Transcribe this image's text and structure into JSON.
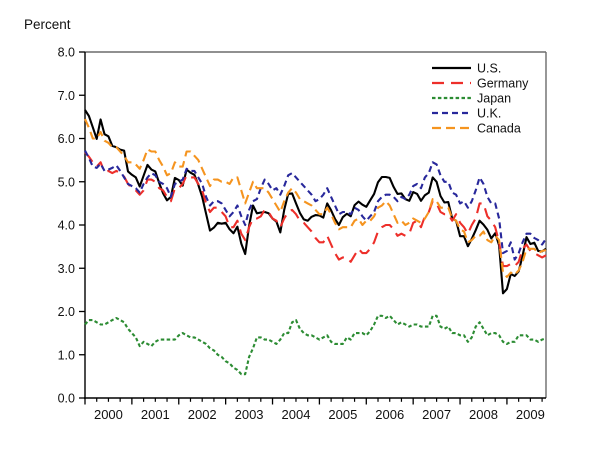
{
  "chart_data": {
    "type": "line",
    "title": "Percent",
    "xlabel": "",
    "ylabel": "Percent",
    "ylim": [
      0.0,
      8.0
    ],
    "ytick_step": 1.0,
    "ytick_labels": [
      "0.0",
      "1.0",
      "2.0",
      "3.0",
      "4.0",
      "5.0",
      "6.0",
      "7.0",
      "8.0"
    ],
    "x_year_labels": [
      "2000",
      "2001",
      "2002",
      "2003",
      "2004",
      "2005",
      "2006",
      "2007",
      "2008",
      "2009"
    ],
    "x_frequency": "monthly",
    "x_start": "2000-01",
    "x_end": "2009-11",
    "x_tick_major": "yearly",
    "x_tick_minor": "quarterly",
    "grid": false,
    "legend_position": "top-right-inside",
    "axis_color": "#000000",
    "frame_color": "#6b6b6b",
    "background_color": "#ffffff",
    "series": [
      {
        "name": "U.S.",
        "color": "#000000",
        "dash": "solid",
        "dasharray": "",
        "values": [
          6.66,
          6.52,
          6.26,
          5.99,
          6.44,
          6.1,
          6.05,
          5.83,
          5.8,
          5.74,
          5.72,
          5.24,
          5.16,
          5.1,
          4.89,
          5.14,
          5.39,
          5.28,
          5.24,
          4.97,
          4.73,
          4.57,
          4.65,
          5.09,
          5.04,
          4.91,
          5.28,
          5.21,
          5.16,
          4.93,
          4.65,
          4.26,
          3.87,
          3.94,
          4.05,
          4.03,
          4.05,
          3.9,
          3.81,
          3.96,
          3.57,
          3.33,
          3.98,
          4.45,
          4.27,
          4.29,
          4.3,
          4.27,
          4.15,
          4.08,
          3.83,
          4.35,
          4.72,
          4.73,
          4.5,
          4.28,
          4.13,
          4.1,
          4.19,
          4.23,
          4.22,
          4.17,
          4.5,
          4.34,
          4.14,
          4.0,
          4.18,
          4.26,
          4.2,
          4.46,
          4.54,
          4.47,
          4.42,
          4.57,
          4.72,
          4.99,
          5.11,
          5.11,
          5.09,
          4.88,
          4.72,
          4.73,
          4.6,
          4.56,
          4.76,
          4.72,
          4.56,
          4.69,
          4.75,
          5.1,
          5.0,
          4.67,
          4.52,
          4.53,
          4.15,
          4.1,
          3.74,
          3.74,
          3.51,
          3.68,
          3.88,
          4.1,
          4.01,
          3.89,
          3.69,
          3.81,
          3.53,
          2.42,
          2.52,
          2.87,
          2.82,
          2.93,
          3.29,
          3.72,
          3.56,
          3.59,
          3.4,
          3.39,
          3.45
        ]
      },
      {
        "name": "Germany",
        "color": "#ed2f2a",
        "dash": "long-dash",
        "dasharray": "12,7",
        "values": [
          5.68,
          5.58,
          5.45,
          5.35,
          5.45,
          5.22,
          5.25,
          5.2,
          5.25,
          5.2,
          5.12,
          4.95,
          4.85,
          4.8,
          4.7,
          4.8,
          5.05,
          5.05,
          5.0,
          4.85,
          4.8,
          4.65,
          4.55,
          4.85,
          4.85,
          4.95,
          5.15,
          5.1,
          5.1,
          4.95,
          4.8,
          4.5,
          4.3,
          4.4,
          4.4,
          4.3,
          4.2,
          3.95,
          3.95,
          4.1,
          3.8,
          3.65,
          3.95,
          4.15,
          4.15,
          4.2,
          4.35,
          4.3,
          4.15,
          4.1,
          3.95,
          4.15,
          4.3,
          4.35,
          4.25,
          4.1,
          4.05,
          3.95,
          3.85,
          3.7,
          3.6,
          3.6,
          3.75,
          3.55,
          3.35,
          3.2,
          3.25,
          3.25,
          3.15,
          3.3,
          3.45,
          3.35,
          3.35,
          3.45,
          3.6,
          3.85,
          3.95,
          4.0,
          4.0,
          3.9,
          3.75,
          3.8,
          3.75,
          3.8,
          4.05,
          4.1,
          3.95,
          4.2,
          4.3,
          4.55,
          4.5,
          4.3,
          4.25,
          4.25,
          4.1,
          4.25,
          4.05,
          3.95,
          3.8,
          4.0,
          4.15,
          4.5,
          4.5,
          4.2,
          4.1,
          3.95,
          3.6,
          3.05,
          3.05,
          3.1,
          3.05,
          3.15,
          3.45,
          3.55,
          3.4,
          3.35,
          3.3,
          3.25,
          3.3
        ]
      },
      {
        "name": "Japan",
        "color": "#2c8c33",
        "dash": "short-dash",
        "dasharray": "3.5,2.4",
        "values": [
          1.7,
          1.8,
          1.8,
          1.75,
          1.7,
          1.7,
          1.75,
          1.8,
          1.85,
          1.8,
          1.75,
          1.6,
          1.5,
          1.4,
          1.2,
          1.3,
          1.25,
          1.2,
          1.3,
          1.35,
          1.35,
          1.35,
          1.35,
          1.35,
          1.45,
          1.5,
          1.45,
          1.4,
          1.4,
          1.35,
          1.3,
          1.25,
          1.15,
          1.1,
          1.0,
          0.95,
          0.85,
          0.8,
          0.7,
          0.65,
          0.55,
          0.55,
          0.95,
          1.15,
          1.4,
          1.4,
          1.35,
          1.35,
          1.3,
          1.25,
          1.35,
          1.5,
          1.5,
          1.75,
          1.8,
          1.6,
          1.5,
          1.45,
          1.45,
          1.4,
          1.35,
          1.4,
          1.45,
          1.3,
          1.25,
          1.25,
          1.25,
          1.4,
          1.35,
          1.5,
          1.5,
          1.5,
          1.45,
          1.55,
          1.7,
          1.9,
          1.9,
          1.85,
          1.9,
          1.8,
          1.7,
          1.75,
          1.7,
          1.65,
          1.7,
          1.7,
          1.65,
          1.65,
          1.65,
          1.9,
          1.9,
          1.65,
          1.6,
          1.65,
          1.5,
          1.5,
          1.45,
          1.45,
          1.3,
          1.4,
          1.65,
          1.75,
          1.6,
          1.45,
          1.5,
          1.5,
          1.45,
          1.3,
          1.25,
          1.3,
          1.3,
          1.45,
          1.45,
          1.45,
          1.35,
          1.35,
          1.3,
          1.35,
          1.38
        ]
      },
      {
        "name": "U.K.",
        "color": "#28289b",
        "dash": "medium-dash",
        "dasharray": "6,4",
        "values": [
          5.72,
          5.55,
          5.35,
          5.32,
          5.42,
          5.25,
          5.28,
          5.32,
          5.38,
          5.25,
          5.1,
          4.95,
          4.9,
          4.85,
          4.75,
          4.95,
          5.1,
          5.2,
          5.15,
          5.0,
          4.95,
          4.85,
          4.65,
          4.95,
          5.0,
          5.05,
          5.3,
          5.25,
          5.25,
          5.1,
          4.95,
          4.65,
          4.45,
          4.55,
          4.55,
          4.5,
          4.35,
          4.2,
          4.3,
          4.45,
          4.2,
          4.0,
          4.35,
          4.55,
          4.6,
          4.85,
          5.05,
          4.95,
          4.8,
          4.85,
          4.7,
          4.9,
          5.15,
          5.2,
          5.1,
          5.0,
          4.9,
          4.8,
          4.7,
          4.55,
          4.6,
          4.7,
          4.85,
          4.65,
          4.45,
          4.25,
          4.3,
          4.3,
          4.25,
          4.4,
          4.35,
          4.2,
          4.1,
          4.2,
          4.3,
          4.55,
          4.65,
          4.7,
          4.7,
          4.65,
          4.55,
          4.65,
          4.6,
          4.7,
          4.9,
          4.95,
          4.85,
          5.1,
          5.2,
          5.45,
          5.4,
          5.15,
          5.0,
          5.0,
          4.75,
          4.7,
          4.5,
          4.55,
          4.4,
          4.55,
          4.8,
          5.1,
          4.95,
          4.65,
          4.5,
          4.5,
          4.15,
          3.35,
          3.4,
          3.6,
          3.2,
          3.35,
          3.6,
          3.8,
          3.8,
          3.7,
          3.65,
          3.55,
          3.68
        ]
      },
      {
        "name": "Canada",
        "color": "#f5941f",
        "dash": "long-dash",
        "dasharray": "9,5",
        "values": [
          6.45,
          6.25,
          6.0,
          6.0,
          6.15,
          5.95,
          5.9,
          5.8,
          5.8,
          5.7,
          5.6,
          5.45,
          5.45,
          5.4,
          5.3,
          5.5,
          5.75,
          5.7,
          5.7,
          5.5,
          5.35,
          5.15,
          5.2,
          5.45,
          5.35,
          5.35,
          5.7,
          5.7,
          5.6,
          5.5,
          5.3,
          5.1,
          4.9,
          5.05,
          5.05,
          5.0,
          5.0,
          4.95,
          5.1,
          5.1,
          4.8,
          4.5,
          4.75,
          5.0,
          4.85,
          4.85,
          4.85,
          4.75,
          4.6,
          4.45,
          4.3,
          4.55,
          4.75,
          4.85,
          4.75,
          4.6,
          4.55,
          4.5,
          4.45,
          4.35,
          4.25,
          4.25,
          4.4,
          4.25,
          4.05,
          3.9,
          3.95,
          3.95,
          3.95,
          4.1,
          4.15,
          4.0,
          4.1,
          4.1,
          4.2,
          4.4,
          4.45,
          4.55,
          4.45,
          4.25,
          4.05,
          4.1,
          4.0,
          4.05,
          4.15,
          4.1,
          4.05,
          4.15,
          4.3,
          4.6,
          4.55,
          4.4,
          4.4,
          4.4,
          4.15,
          4.1,
          3.9,
          3.85,
          3.6,
          3.65,
          3.75,
          3.75,
          3.85,
          3.65,
          3.6,
          3.75,
          3.65,
          2.9,
          2.8,
          2.9,
          2.85,
          2.95,
          3.15,
          3.45,
          3.45,
          3.45,
          3.35,
          3.4,
          3.42
        ]
      }
    ]
  }
}
